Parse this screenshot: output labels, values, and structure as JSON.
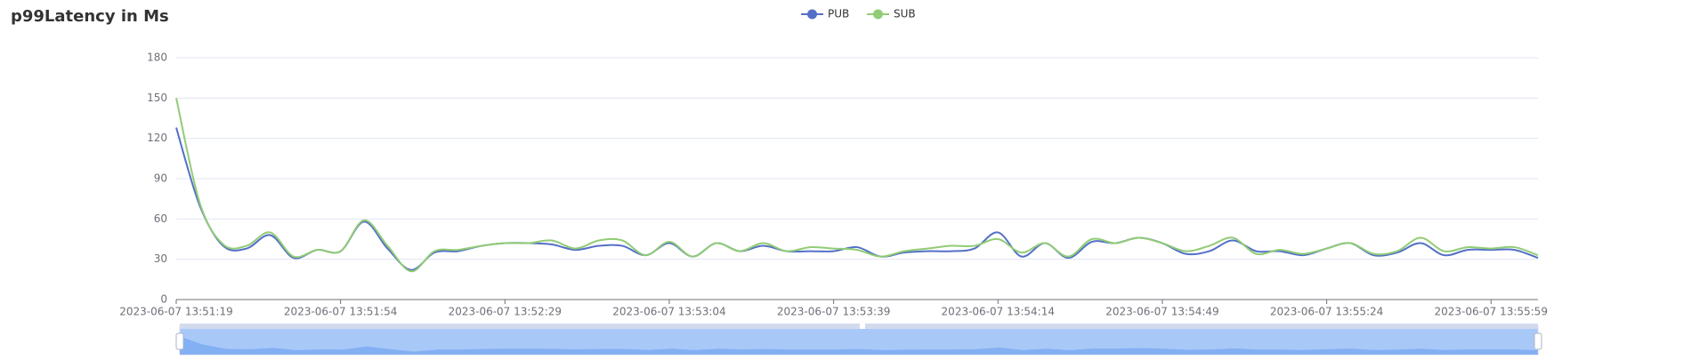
{
  "chart_data": {
    "type": "line",
    "title": "p99Latency in Ms",
    "categories": [
      "2023-06-07 13:51:19",
      null,
      null,
      null,
      null,
      null,
      null,
      "2023-06-07 13:51:54",
      null,
      null,
      null,
      null,
      null,
      null,
      "2023-06-07 13:52:29",
      null,
      null,
      null,
      null,
      null,
      null,
      "2023-06-07 13:53:04",
      null,
      null,
      null,
      null,
      null,
      null,
      "2023-06-07 13:53:39",
      null,
      null,
      null,
      null,
      null,
      null,
      "2023-06-07 13:54:14",
      null,
      null,
      null,
      null,
      null,
      null,
      "2023-06-07 13:54:49",
      null,
      null,
      null,
      null,
      null,
      null,
      "2023-06-07 13:55:24",
      null,
      null,
      null,
      null,
      null,
      null,
      "2023-06-07 13:55:59",
      null,
      null
    ],
    "series": [
      {
        "name": "PUB",
        "color": "#5470c6",
        "values": [
          128,
          70,
          40,
          38,
          48,
          31,
          37,
          36,
          58,
          38,
          22,
          35,
          36,
          40,
          42,
          42,
          41,
          37,
          40,
          40,
          33,
          42,
          32,
          42,
          36,
          40,
          36,
          36,
          36,
          39,
          32,
          35,
          36,
          36,
          38,
          50,
          32,
          42,
          31,
          43,
          42,
          46,
          42,
          34,
          36,
          44,
          36,
          36,
          33,
          38,
          42,
          33,
          35,
          42,
          33,
          37,
          37,
          37,
          31
        ]
      },
      {
        "name": "SUB",
        "color": "#91cc75",
        "values": [
          150,
          72,
          41,
          40,
          50,
          32,
          37,
          36,
          59,
          40,
          21,
          36,
          37,
          40,
          42,
          42,
          44,
          38,
          44,
          44,
          33,
          43,
          32,
          42,
          36,
          42,
          36,
          39,
          38,
          37,
          32,
          36,
          38,
          40,
          40,
          45,
          35,
          42,
          32,
          45,
          42,
          46,
          42,
          36,
          40,
          46,
          34,
          37,
          34,
          38,
          42,
          34,
          36,
          46,
          36,
          39,
          38,
          39,
          33
        ]
      }
    ],
    "ylim": [
      0,
      180
    ],
    "yticks": [
      0,
      30,
      60,
      90,
      120,
      150,
      180
    ],
    "grid": true,
    "legend": "top"
  }
}
